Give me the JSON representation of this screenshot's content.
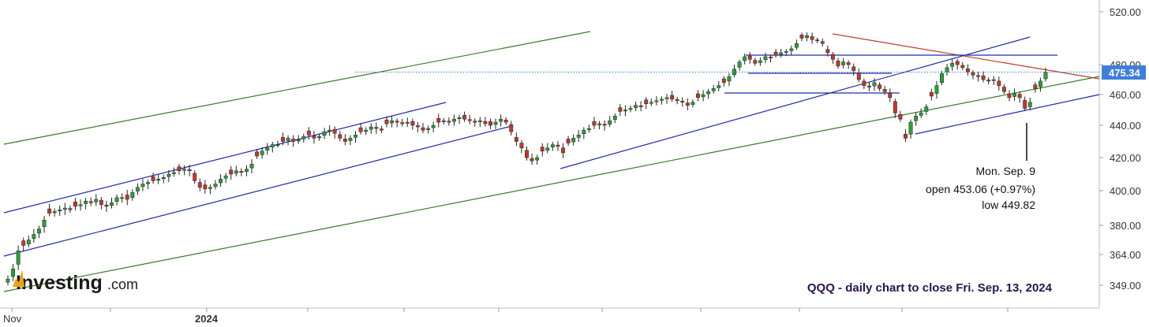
{
  "chart_data": {
    "type": "candlestick",
    "ticker": "QQQ",
    "caption": "QQQ - daily chart to close Fri. Sep. 13, 2024",
    "y_ticks": [
      "520.00",
      "480.00",
      "460.00",
      "440.00",
      "420.00",
      "400.00",
      "380.00",
      "364.00",
      "349.00"
    ],
    "x_ticks": [
      "Nov",
      "2024"
    ],
    "last_price": "475.34",
    "annotation": {
      "date": "Mon. Sep. 9",
      "open": "open 453.06 (+0.97%)",
      "low": "low 449.82"
    },
    "logo": {
      "main": "Investing",
      "suffix": ".com"
    },
    "colors": {
      "up": "#2e9e3e",
      "down": "#c0392b",
      "channel": "#1f2aa8",
      "trend_green": "#3a7a2a",
      "resistance": "#c0392b",
      "price_badge": "#3d7fd9",
      "price_line": "#3d7fd9"
    },
    "closes_approx": [
      352,
      357,
      366,
      369,
      372,
      375,
      378,
      383,
      387,
      388,
      389,
      390,
      389,
      391,
      392,
      394,
      393,
      395,
      392,
      391,
      393,
      396,
      396,
      395,
      399,
      402,
      404,
      405,
      406,
      407,
      408,
      410,
      411,
      412,
      413,
      412,
      406,
      402,
      401,
      402,
      404,
      407,
      409,
      410,
      412,
      411,
      413,
      416,
      421,
      424,
      426,
      428,
      428,
      430,
      432,
      430,
      431,
      433,
      434,
      432,
      433,
      436,
      437,
      435,
      432,
      430,
      432,
      434,
      436,
      437,
      439,
      438,
      437,
      441,
      443,
      442,
      441,
      442,
      440,
      439,
      437,
      438,
      440,
      442,
      443,
      442,
      444,
      445,
      444,
      443,
      442,
      443,
      441,
      440,
      442,
      444,
      442,
      436,
      430,
      426,
      420,
      418,
      420,
      424,
      426,
      428,
      427,
      423,
      429,
      432,
      434,
      437,
      438,
      440,
      441,
      440,
      443,
      446,
      449,
      450,
      451,
      453,
      452,
      454,
      455,
      456,
      457,
      458,
      457,
      456,
      455,
      453,
      455,
      458,
      460,
      462,
      464,
      466,
      468,
      472,
      477,
      482,
      486,
      484,
      481,
      483,
      486,
      485,
      487,
      489,
      490,
      492,
      496,
      500,
      502,
      499,
      498,
      496,
      489,
      484,
      479,
      482,
      480,
      476,
      470,
      466,
      465,
      468,
      464,
      462,
      458,
      448,
      444,
      432,
      442,
      446,
      448,
      452,
      459,
      466,
      474,
      478,
      481,
      480,
      478,
      475,
      473,
      472,
      470,
      469,
      470,
      466,
      462,
      458,
      461,
      458,
      451,
      455,
      464,
      469,
      475
    ]
  }
}
